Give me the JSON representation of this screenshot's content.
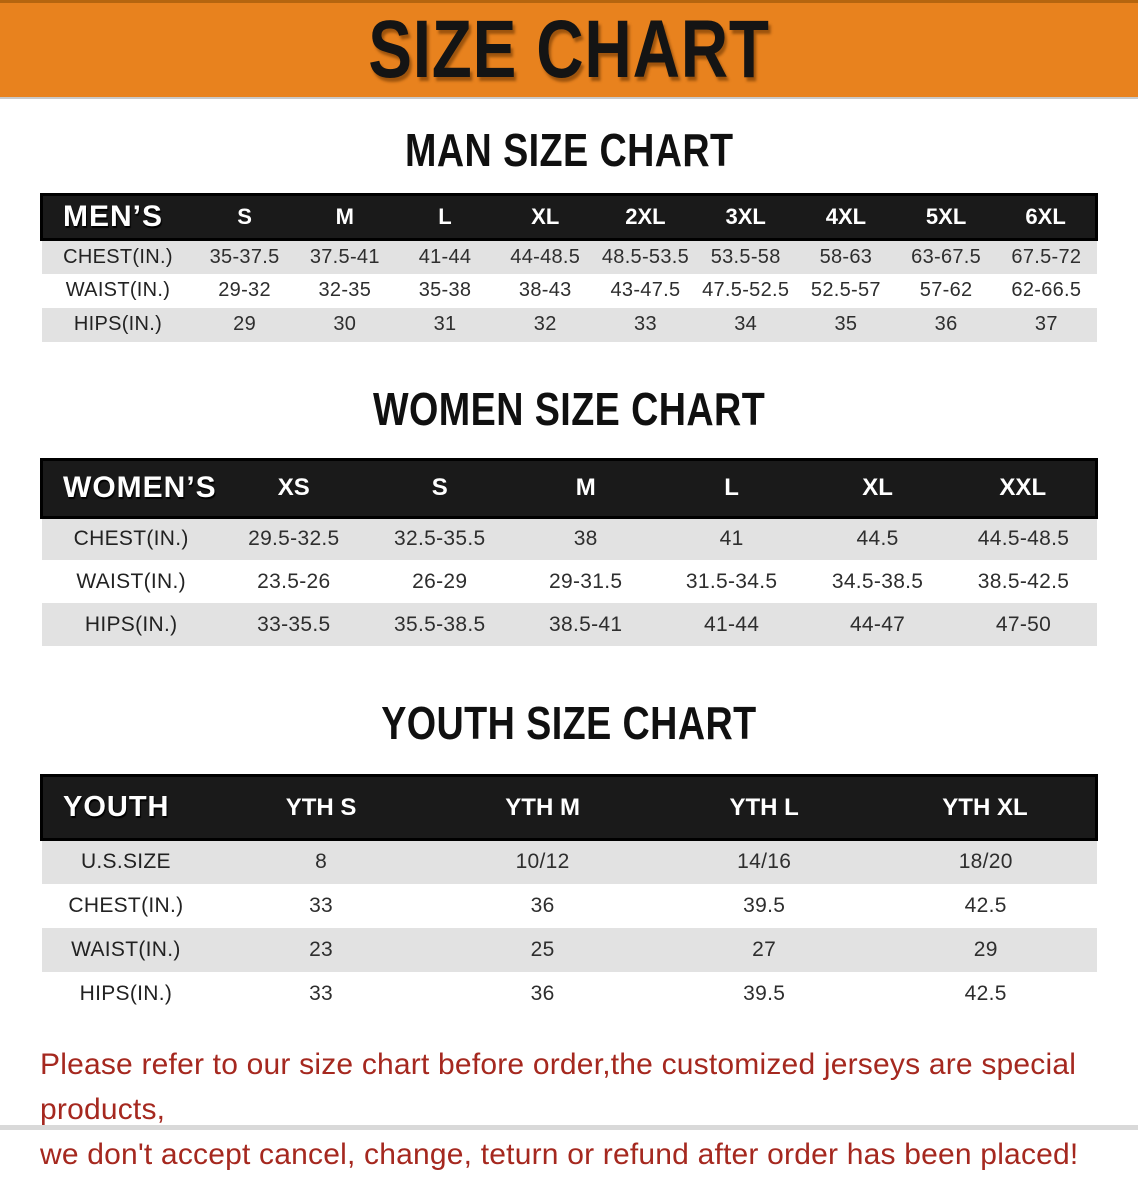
{
  "banner": {
    "title": "SIZE CHART"
  },
  "colors": {
    "banner_bg": "#E8821E",
    "header_bar_bg": "#1A1A1A",
    "row_stripe": "#E2E2E2",
    "note_color": "#A5281F"
  },
  "tables": [
    {
      "id": "men",
      "title": "MAN SIZE CHART",
      "header": [
        "MEN’S",
        "S",
        "M",
        "L",
        "XL",
        "2XL",
        "3XL",
        "4XL",
        "5XL",
        "6XL"
      ],
      "rows": [
        [
          "CHEST(IN.)",
          "35-37.5",
          "37.5-41",
          "41-44",
          "44-48.5",
          "48.5-53.5",
          "53.5-58",
          "58-63",
          "63-67.5",
          "67.5-72"
        ],
        [
          "WAIST(IN.)",
          "29-32",
          "32-35",
          "35-38",
          "38-43",
          "43-47.5",
          "47.5-52.5",
          "52.5-57",
          "57-62",
          "62-66.5"
        ],
        [
          "HIPS(IN.)",
          "29",
          "30",
          "31",
          "32",
          "33",
          "34",
          "35",
          "36",
          "37"
        ]
      ]
    },
    {
      "id": "women",
      "title": "WOMEN SIZE CHART",
      "header": [
        "WOMEN’S",
        "XS",
        "S",
        "M",
        "L",
        "XL",
        "XXL"
      ],
      "rows": [
        [
          "CHEST(IN.)",
          "29.5-32.5",
          "32.5-35.5",
          "38",
          "41",
          "44.5",
          "44.5-48.5"
        ],
        [
          "WAIST(IN.)",
          "23.5-26",
          "26-29",
          "29-31.5",
          "31.5-34.5",
          "34.5-38.5",
          "38.5-42.5"
        ],
        [
          "HIPS(IN.)",
          "33-35.5",
          "35.5-38.5",
          "38.5-41",
          "41-44",
          "44-47",
          "47-50"
        ]
      ]
    },
    {
      "id": "youth",
      "title": "YOUTH SIZE CHART",
      "header": [
        "YOUTH",
        "YTH S",
        "YTH M",
        "YTH L",
        "YTH XL"
      ],
      "rows": [
        [
          "U.S.SIZE",
          "8",
          "10/12",
          "14/16",
          "18/20"
        ],
        [
          "CHEST(IN.)",
          "33",
          "36",
          "39.5",
          "42.5"
        ],
        [
          "WAIST(IN.)",
          "23",
          "25",
          "27",
          "29"
        ],
        [
          "HIPS(IN.)",
          "33",
          "36",
          "39.5",
          "42.5"
        ]
      ]
    }
  ],
  "note": {
    "lines": [
      "Please refer to our size chart before order,the customized jerseys are special products,",
      "we don't accept cancel, change, teturn or refund after order has been placed!"
    ]
  }
}
